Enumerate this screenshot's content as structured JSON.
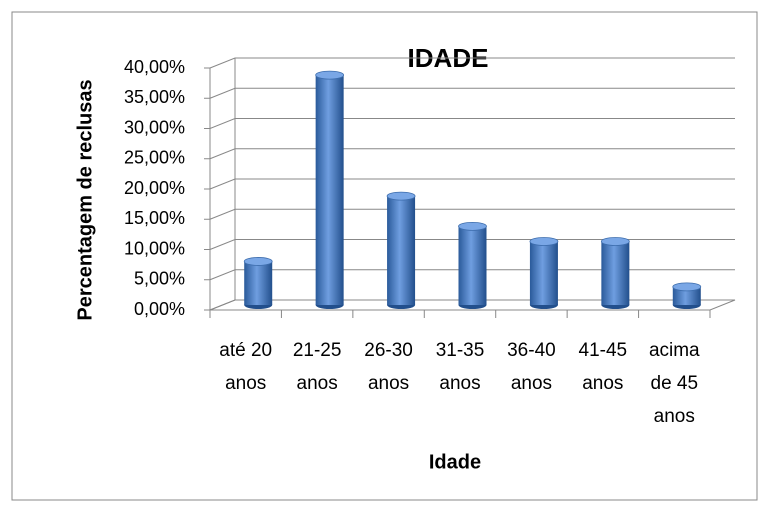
{
  "chart_data": {
    "type": "bar",
    "title": "IDADE",
    "y_label": "Percentagem de reclusas",
    "x_label": "Idade",
    "categories": [
      "até 20 anos",
      "21-25 anos",
      "26-30 anos",
      "31-35 anos",
      "36-40 anos",
      "41-45 anos",
      "acima de 45 anos"
    ],
    "values": [
      7.2,
      38,
      18,
      13,
      10.5,
      10.5,
      3
    ],
    "color": "#4a7ebb",
    "ylim": [
      0,
      40
    ],
    "yticks": [
      {
        "value": 0,
        "label": "0,00%"
      },
      {
        "value": 5,
        "label": "5,00%"
      },
      {
        "value": 10,
        "label": "10,00%"
      },
      {
        "value": 15,
        "label": "15,00%"
      },
      {
        "value": 20,
        "label": "20,00%"
      },
      {
        "value": 25,
        "label": "25,00%"
      },
      {
        "value": 30,
        "label": "30,00%"
      },
      {
        "value": 35,
        "label": "35,00%"
      },
      {
        "value": 40,
        "label": "40,00%"
      }
    ],
    "grid": true
  }
}
